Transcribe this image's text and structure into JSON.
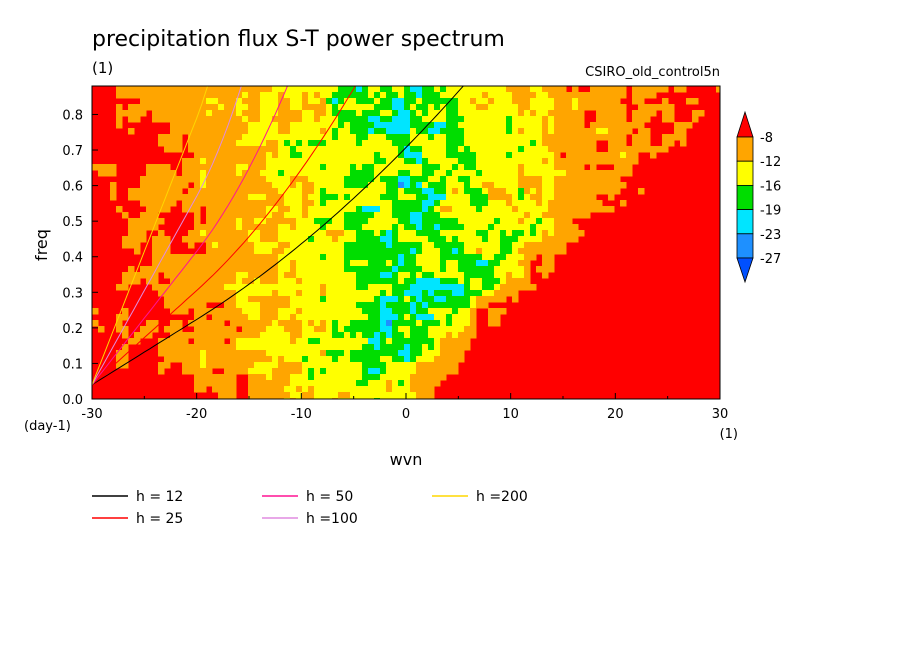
{
  "chart_data": {
    "type": "heatmap",
    "title": "precipitation flux S-T power spectrum",
    "subtitle_left": "(1)",
    "subtitle_right": "CSIRO_old_control5n",
    "xlabel": "wvn",
    "xunits": "(1)",
    "ylabel": "freq",
    "yunits": "(day-1)",
    "xlim": [
      -30,
      30
    ],
    "ylim": [
      0,
      0.88
    ],
    "xticks": [
      -30,
      -20,
      -10,
      0,
      10,
      20,
      30
    ],
    "xtick_labels": [
      "-30",
      "-20",
      "-10",
      "0",
      "10",
      "20",
      "30"
    ],
    "yticks": [
      0.0,
      0.1,
      0.2,
      0.3,
      0.4,
      0.5,
      0.6,
      0.7,
      0.8
    ],
    "ytick_labels": [
      "0.0",
      "0.1",
      "0.2",
      "0.3",
      "0.4",
      "0.5",
      "0.6",
      "0.7",
      "0.8"
    ],
    "colorbar": {
      "levels": [
        -8,
        -12,
        -16,
        -19,
        -23,
        -27
      ],
      "labels": [
        "-8",
        "-12",
        "-16",
        "-19",
        "-23",
        "-27"
      ],
      "colors": [
        "#ff0000",
        "#ffa500",
        "#ffff00",
        "#00dd00",
        "#00e5ff",
        "#1e90ff",
        "#0050ff"
      ]
    },
    "dispersion_curves": [
      {
        "name": "h = 12",
        "label": "h = 12",
        "color": "#000000",
        "h": 12
      },
      {
        "name": "h = 25",
        "label": "h = 25",
        "color": "#ff0000",
        "h": 25
      },
      {
        "name": "h = 50",
        "label": "h = 50",
        "color": "#ff1493",
        "h": 50
      },
      {
        "name": "h = 100",
        "label": "h =100",
        "color": "#e08ce0",
        "h": 100
      },
      {
        "name": "h = 200",
        "label": "h =200",
        "color": "#ffd700",
        "h": 200
      }
    ]
  }
}
